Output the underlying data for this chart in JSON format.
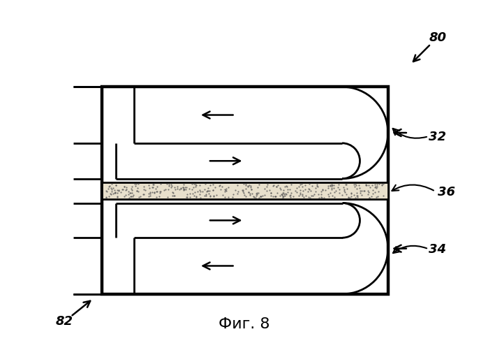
{
  "title": "Фиг. 8",
  "label_80": "80",
  "label_82": "82",
  "label_32": "32",
  "label_34": "34",
  "label_36": "36",
  "bg_color": "#ffffff",
  "line_color": "#000000",
  "filter_color": "#e8e0cc",
  "lw": 2.0,
  "fig_width": 6.99,
  "fig_height": 4.89
}
